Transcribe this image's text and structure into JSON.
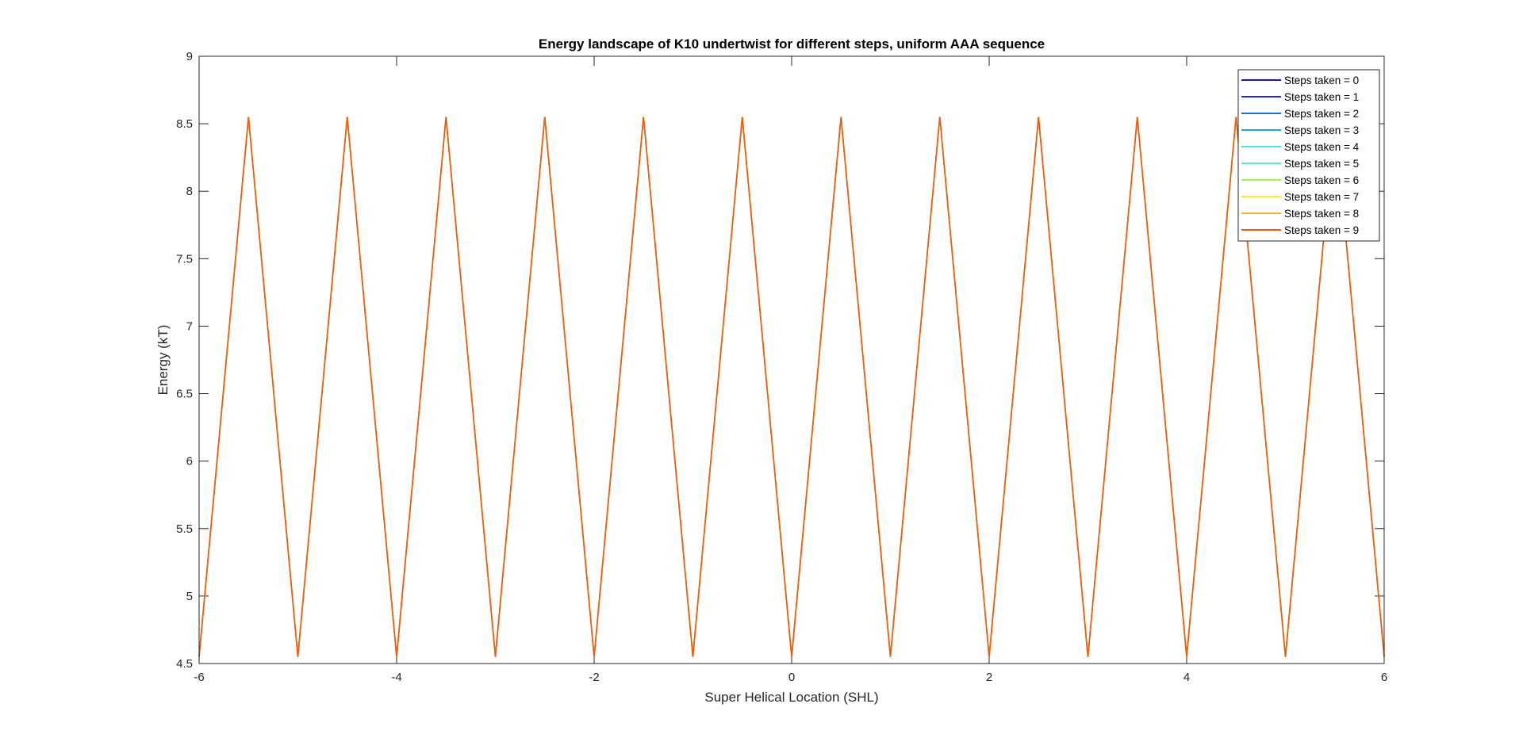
{
  "chart_data": {
    "type": "line",
    "title": "Energy landscape of K10 undertwist for different steps, uniform AAA sequence",
    "xlabel": "Super Helical Location (SHL)",
    "ylabel": "Energy (kT)",
    "xlim": [
      -6,
      6
    ],
    "ylim": [
      4.5,
      9
    ],
    "xticks": [
      -6,
      -4,
      -2,
      0,
      2,
      4,
      6
    ],
    "xtick_labels": [
      "-6",
      "-4",
      "-2",
      "0",
      "2",
      "4",
      "6"
    ],
    "yticks": [
      4.5,
      5,
      5.5,
      6,
      6.5,
      7,
      7.5,
      8,
      8.5,
      9
    ],
    "ytick_labels": [
      "4.5",
      "5",
      "5.5",
      "6",
      "6.5",
      "7",
      "7.5",
      "8",
      "8.5",
      "9"
    ],
    "grid": false,
    "box": true,
    "legend_position": "top-right",
    "x": [
      -6,
      -5.5,
      -5,
      -4.5,
      -4,
      -3.5,
      -3,
      -2.5,
      -2,
      -1.5,
      -1,
      -0.5,
      0,
      0.5,
      1,
      1.5,
      2,
      2.5,
      3,
      3.5,
      4,
      4.5,
      5,
      5.5,
      6
    ],
    "series": [
      {
        "name": "Steps taken = 0",
        "color": "#1a1ab0",
        "values": [
          4.55,
          8.55,
          4.55,
          8.55,
          4.55,
          8.55,
          4.55,
          8.55,
          4.55,
          8.55,
          4.55,
          8.55,
          4.55,
          8.55,
          4.55,
          8.55,
          4.55,
          8.55,
          4.55,
          8.55,
          4.55,
          8.55,
          4.55,
          8.55,
          4.55
        ]
      },
      {
        "name": "Steps taken = 1",
        "color": "#2828cc",
        "values": [
          4.55,
          8.55,
          4.55,
          8.55,
          4.55,
          8.55,
          4.55,
          8.55,
          4.55,
          8.55,
          4.55,
          8.55,
          4.55,
          8.55,
          4.55,
          8.55,
          4.55,
          8.55,
          4.55,
          8.55,
          4.55,
          8.55,
          4.55,
          8.55,
          4.55
        ]
      },
      {
        "name": "Steps taken = 2",
        "color": "#1f6ed4",
        "values": [
          4.55,
          8.55,
          4.55,
          8.55,
          4.55,
          8.55,
          4.55,
          8.55,
          4.55,
          8.55,
          4.55,
          8.55,
          4.55,
          8.55,
          4.55,
          8.55,
          4.55,
          8.55,
          4.55,
          8.55,
          4.55,
          8.55,
          4.55,
          8.55,
          4.55
        ]
      },
      {
        "name": "Steps taken = 3",
        "color": "#1aa8e0",
        "values": [
          4.55,
          8.55,
          4.55,
          8.55,
          4.55,
          8.55,
          4.55,
          8.55,
          4.55,
          8.55,
          4.55,
          8.55,
          4.55,
          8.55,
          4.55,
          8.55,
          4.55,
          8.55,
          4.55,
          8.55,
          4.55,
          8.55,
          4.55,
          8.55,
          4.55
        ]
      },
      {
        "name": "Steps taken = 4",
        "color": "#3ee6ee",
        "values": [
          4.55,
          8.55,
          4.55,
          8.55,
          4.55,
          8.55,
          4.55,
          8.55,
          4.55,
          8.55,
          4.55,
          8.55,
          4.55,
          8.55,
          4.55,
          8.55,
          4.55,
          8.55,
          4.55,
          8.55,
          4.55,
          8.55,
          4.55,
          8.55,
          4.55
        ]
      },
      {
        "name": "Steps taken = 5",
        "color": "#5af0b4",
        "values": [
          4.55,
          8.55,
          4.55,
          8.55,
          4.55,
          8.55,
          4.55,
          8.55,
          4.55,
          8.55,
          4.55,
          8.55,
          4.55,
          8.55,
          4.55,
          8.55,
          4.55,
          8.55,
          4.55,
          8.55,
          4.55,
          8.55,
          4.55,
          8.55,
          4.55
        ]
      },
      {
        "name": "Steps taken = 6",
        "color": "#a4f25a",
        "values": [
          4.55,
          8.55,
          4.55,
          8.55,
          4.55,
          8.55,
          4.55,
          8.55,
          4.55,
          8.55,
          4.55,
          8.55,
          4.55,
          8.55,
          4.55,
          8.55,
          4.55,
          8.55,
          4.55,
          8.55,
          4.55,
          8.55,
          4.55,
          8.55,
          4.55
        ]
      },
      {
        "name": "Steps taken = 7",
        "color": "#f2f224",
        "values": [
          4.55,
          8.55,
          4.55,
          8.55,
          4.55,
          8.55,
          4.55,
          8.55,
          4.55,
          8.55,
          4.55,
          8.55,
          4.55,
          8.55,
          4.55,
          8.55,
          4.55,
          8.55,
          4.55,
          8.55,
          4.55,
          8.55,
          4.55,
          8.55,
          4.55
        ]
      },
      {
        "name": "Steps taken = 8",
        "color": "#f7b22e",
        "values": [
          4.55,
          8.55,
          4.55,
          8.55,
          4.55,
          8.55,
          4.55,
          8.55,
          4.55,
          8.55,
          4.55,
          8.55,
          4.55,
          8.55,
          4.55,
          8.55,
          4.55,
          8.55,
          4.55,
          8.55,
          4.55,
          8.55,
          4.55,
          8.55,
          4.55
        ]
      },
      {
        "name": "Steps taken = 9",
        "color": "#f05a14",
        "values": [
          4.55,
          8.55,
          4.55,
          8.55,
          4.55,
          8.55,
          4.55,
          8.55,
          4.55,
          8.55,
          4.55,
          8.55,
          4.55,
          8.55,
          4.55,
          8.55,
          4.55,
          8.55,
          4.55,
          8.55,
          4.55,
          8.55,
          4.55,
          8.55,
          4.55
        ]
      }
    ]
  }
}
